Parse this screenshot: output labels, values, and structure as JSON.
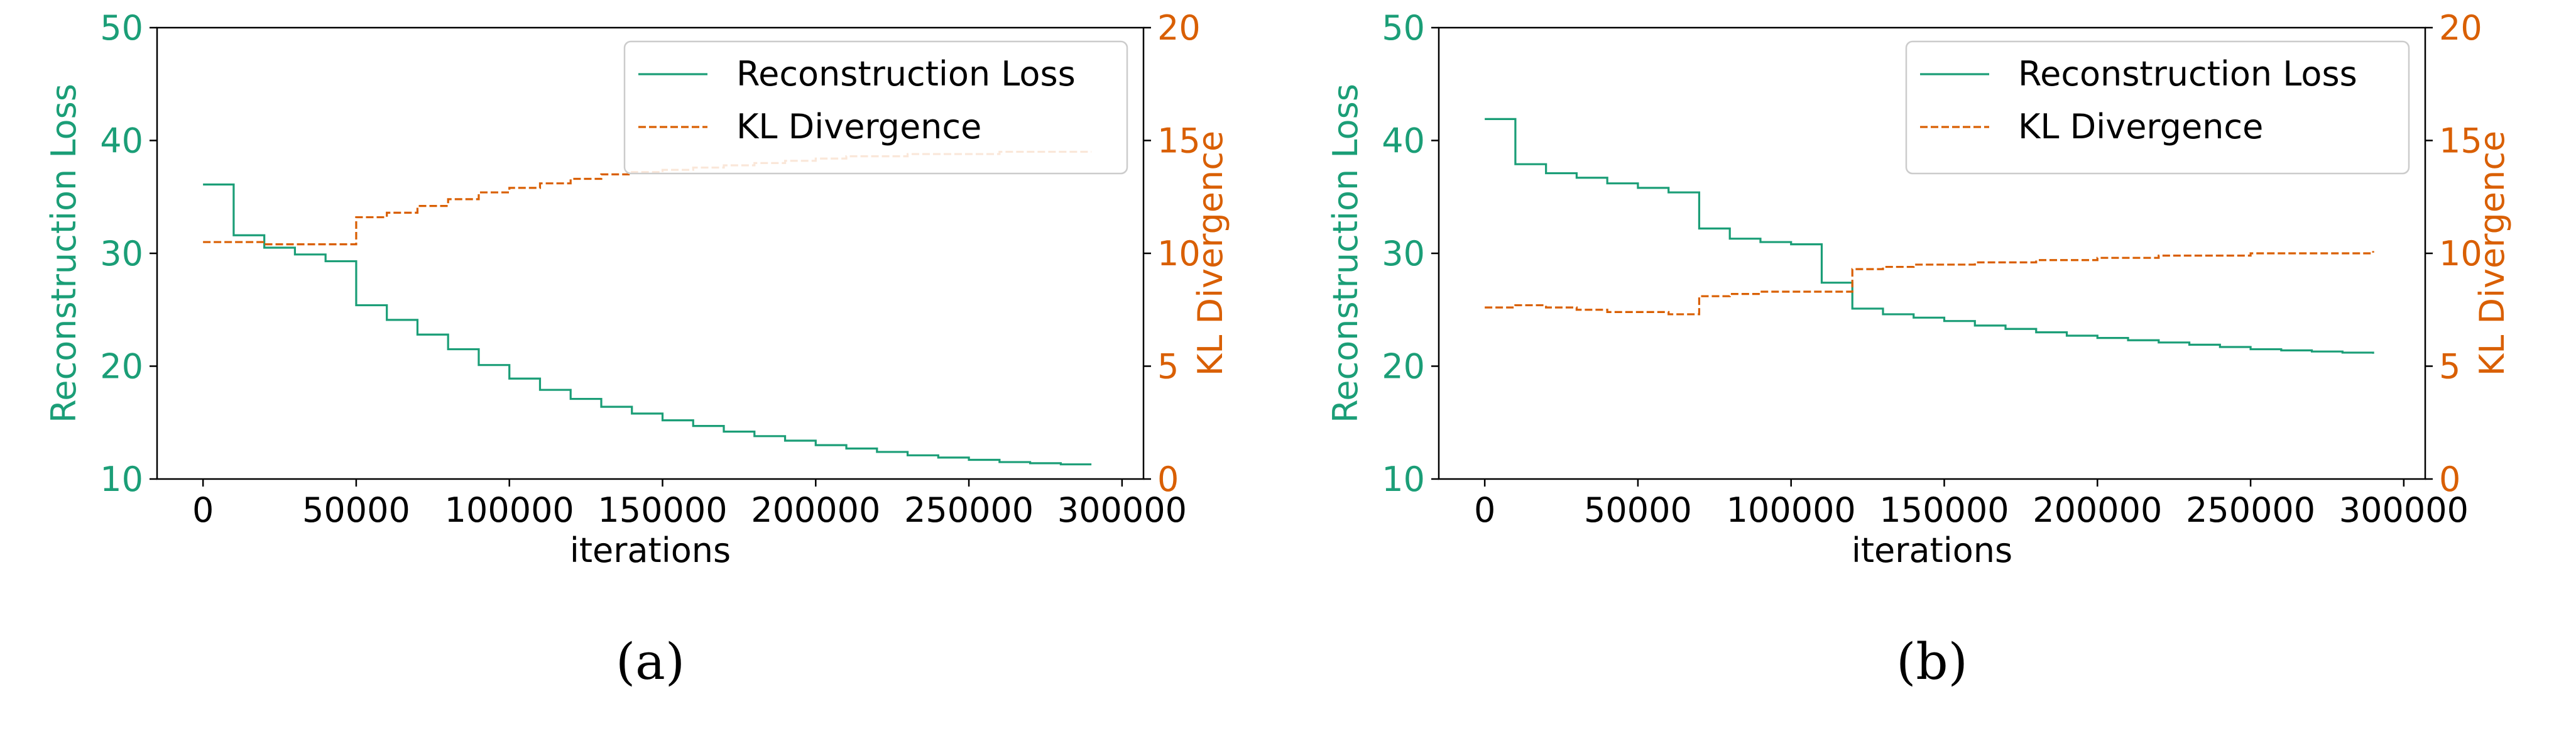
{
  "chart_data": [
    {
      "type": "line",
      "caption": "(a)",
      "xlabel": "iterations",
      "ylabel": "Reconstruction Loss",
      "ylabel_right": "KL Divergence",
      "xlim": [
        -15000,
        307000
      ],
      "ylim": [
        10,
        50
      ],
      "ylim_right": [
        0,
        20
      ],
      "xticks": [
        0,
        50000,
        100000,
        150000,
        200000,
        250000,
        300000
      ],
      "yticks": [
        10,
        20,
        30,
        40,
        50
      ],
      "yticks_right": [
        0,
        5,
        10,
        15,
        20
      ],
      "grid": false,
      "legend": "top-right",
      "series": [
        {
          "name": "Reconstruction Loss",
          "axis": "left",
          "color": "#1b9e77",
          "style": "solid",
          "x": [
            0,
            10000,
            20000,
            30000,
            40000,
            50000,
            60000,
            70000,
            80000,
            90000,
            100000,
            110000,
            120000,
            130000,
            140000,
            150000,
            160000,
            170000,
            180000,
            190000,
            200000,
            210000,
            220000,
            230000,
            240000,
            250000,
            260000,
            270000,
            280000,
            290000
          ],
          "values": [
            36.1,
            31.6,
            30.5,
            29.9,
            29.3,
            25.4,
            24.1,
            22.8,
            21.5,
            20.1,
            18.9,
            17.9,
            17.1,
            16.4,
            15.8,
            15.2,
            14.7,
            14.2,
            13.8,
            13.4,
            13.0,
            12.7,
            12.4,
            12.1,
            11.9,
            11.7,
            11.5,
            11.4,
            11.3,
            11.3
          ]
        },
        {
          "name": "KL Divergence",
          "axis": "right",
          "color": "#d95f02",
          "style": "dashed",
          "x": [
            0,
            10000,
            20000,
            30000,
            40000,
            50000,
            60000,
            70000,
            80000,
            90000,
            100000,
            110000,
            120000,
            130000,
            140000,
            150000,
            160000,
            170000,
            180000,
            190000,
            200000,
            210000,
            220000,
            230000,
            240000,
            250000,
            260000,
            270000,
            280000,
            290000
          ],
          "values": [
            10.5,
            10.5,
            10.4,
            10.4,
            10.4,
            11.6,
            11.8,
            12.1,
            12.4,
            12.7,
            12.9,
            13.1,
            13.3,
            13.5,
            13.6,
            13.7,
            13.8,
            13.9,
            14.0,
            14.1,
            14.2,
            14.3,
            14.3,
            14.4,
            14.4,
            14.4,
            14.5,
            14.5,
            14.5,
            14.5
          ]
        }
      ]
    },
    {
      "type": "line",
      "caption": "(b)",
      "xlabel": "iterations",
      "ylabel": "Reconstruction Loss",
      "ylabel_right": "KL Divergence",
      "xlim": [
        -15000,
        307000
      ],
      "ylim": [
        10,
        50
      ],
      "ylim_right": [
        0,
        20
      ],
      "xticks": [
        0,
        50000,
        100000,
        150000,
        200000,
        250000,
        300000
      ],
      "yticks": [
        10,
        20,
        30,
        40,
        50
      ],
      "yticks_right": [
        0,
        5,
        10,
        15,
        20
      ],
      "grid": false,
      "legend": "top-right",
      "series": [
        {
          "name": "Reconstruction Loss",
          "axis": "left",
          "color": "#1b9e77",
          "style": "solid",
          "x": [
            0,
            10000,
            20000,
            30000,
            40000,
            50000,
            60000,
            70000,
            80000,
            90000,
            100000,
            110000,
            120000,
            130000,
            140000,
            150000,
            160000,
            170000,
            180000,
            190000,
            200000,
            210000,
            220000,
            230000,
            240000,
            250000,
            260000,
            270000,
            280000,
            290000
          ],
          "values": [
            41.9,
            37.9,
            37.1,
            36.7,
            36.2,
            35.8,
            35.4,
            32.2,
            31.3,
            31.0,
            30.8,
            27.4,
            25.1,
            24.6,
            24.3,
            24.0,
            23.6,
            23.3,
            23.0,
            22.7,
            22.5,
            22.3,
            22.1,
            21.9,
            21.7,
            21.5,
            21.4,
            21.3,
            21.2,
            21.1
          ]
        },
        {
          "name": "KL Divergence",
          "axis": "right",
          "color": "#d95f02",
          "style": "dashed",
          "x": [
            0,
            10000,
            20000,
            30000,
            40000,
            50000,
            60000,
            70000,
            80000,
            90000,
            100000,
            110000,
            120000,
            130000,
            140000,
            150000,
            160000,
            170000,
            180000,
            190000,
            200000,
            210000,
            220000,
            230000,
            240000,
            250000,
            260000,
            270000,
            280000,
            290000
          ],
          "values": [
            7.6,
            7.7,
            7.6,
            7.5,
            7.4,
            7.4,
            7.3,
            8.1,
            8.2,
            8.3,
            8.3,
            8.3,
            9.3,
            9.4,
            9.5,
            9.5,
            9.6,
            9.6,
            9.7,
            9.7,
            9.8,
            9.8,
            9.9,
            9.9,
            9.9,
            10.0,
            10.0,
            10.0,
            10.0,
            10.1
          ]
        }
      ]
    }
  ]
}
